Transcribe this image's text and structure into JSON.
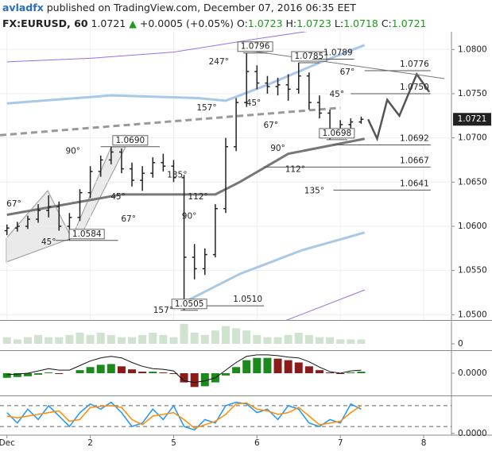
{
  "header": {
    "author": "avladfx",
    "published": "published on TradingView.com, December 07, 2016 06:35 EET",
    "symbol": "FX:EURUSD, 60",
    "last": "1.0721",
    "arrow": "▲",
    "change": "+0.0005 (+0.05%)",
    "o_label": "O:",
    "o": "1.0723",
    "h_label": "H:",
    "h": "1.0723",
    "l_label": "L:",
    "l": "1.0718",
    "c_label": "C:",
    "c": "1.0721"
  },
  "chart_data": [
    {
      "type": "ohlc",
      "color": "#222222",
      "xlim": [
        -2,
        128
      ],
      "xticks": [
        {
          "value": 0,
          "label": "Dec"
        },
        {
          "value": 24,
          "label": "2"
        },
        {
          "value": 48,
          "label": "5"
        },
        {
          "value": 72,
          "label": "6"
        },
        {
          "value": 96,
          "label": "7"
        },
        {
          "value": 120,
          "label": "8"
        }
      ],
      "ylim": [
        1.0494,
        1.082
      ],
      "yticks": [
        {
          "value": 1.05,
          "label": "1.0500"
        },
        {
          "value": 1.055,
          "label": "1.0550"
        },
        {
          "value": 1.06,
          "label": "1.0600"
        },
        {
          "value": 1.065,
          "label": "1.0650"
        },
        {
          "value": 1.07,
          "label": "1.0700"
        },
        {
          "value": 1.075,
          "label": "1.0750"
        },
        {
          "value": 1.08,
          "label": "1.0800"
        }
      ],
      "grid": true,
      "x": [
        0,
        3,
        6,
        9,
        12,
        15,
        18,
        21,
        24,
        27,
        30,
        33,
        36,
        39,
        42,
        45,
        48,
        51,
        54,
        57,
        60,
        63,
        66,
        69,
        72,
        75,
        78,
        81,
        84,
        87,
        90,
        93,
        96,
        99,
        102
      ],
      "open": [
        1.0595,
        1.0598,
        1.06,
        1.0608,
        1.0618,
        1.0622,
        1.06,
        1.061,
        1.0638,
        1.0662,
        1.0675,
        1.0684,
        1.0665,
        1.0652,
        1.066,
        1.0672,
        1.0668,
        1.0655,
        1.0565,
        1.0552,
        1.0568,
        1.062,
        1.069,
        1.074,
        1.0775,
        1.0762,
        1.0758,
        1.076,
        1.0755,
        1.077,
        1.074,
        1.0728,
        1.0708,
        1.0715,
        1.0718
      ],
      "high": [
        1.0602,
        1.0605,
        1.0612,
        1.0625,
        1.0635,
        1.0628,
        1.0615,
        1.0642,
        1.0668,
        1.068,
        1.069,
        1.0688,
        1.0672,
        1.0668,
        1.0678,
        1.0682,
        1.0675,
        1.0658,
        1.058,
        1.0575,
        1.0625,
        1.07,
        1.0745,
        1.0796,
        1.0782,
        1.077,
        1.0768,
        1.0772,
        1.0785,
        1.0774,
        1.0748,
        1.0732,
        1.072,
        1.0722,
        1.0724
      ],
      "low": [
        1.059,
        1.0594,
        1.0597,
        1.0604,
        1.061,
        1.0595,
        1.0584,
        1.0606,
        1.0632,
        1.0656,
        1.067,
        1.066,
        1.0645,
        1.064,
        1.0655,
        1.0662,
        1.065,
        1.0505,
        1.054,
        1.0545,
        1.0565,
        1.0615,
        1.0685,
        1.0735,
        1.0755,
        1.075,
        1.0748,
        1.0742,
        1.075,
        1.0732,
        1.0722,
        1.0698,
        1.0702,
        1.071,
        1.0716
      ],
      "close": [
        1.0598,
        1.06,
        1.0608,
        1.0618,
        1.0622,
        1.06,
        1.061,
        1.0638,
        1.0662,
        1.0675,
        1.0684,
        1.0665,
        1.0652,
        1.066,
        1.0672,
        1.0668,
        1.0655,
        1.0565,
        1.0552,
        1.0568,
        1.062,
        1.069,
        1.074,
        1.0775,
        1.0762,
        1.0758,
        1.076,
        1.0755,
        1.077,
        1.074,
        1.0728,
        1.0708,
        1.0715,
        1.0718,
        1.0721
      ],
      "overlays": [
        {
          "color": "#9a6fe0",
          "width": 1,
          "x": [
            0,
            24,
            48,
            72,
            96,
            104
          ],
          "values": [
            1.0786,
            1.079,
            1.0797,
            1.0812,
            1.0826,
            1.083
          ]
        },
        {
          "color": "#a8c8e8",
          "width": 3,
          "x": [
            0,
            30,
            55,
            63,
            75,
            90,
            103
          ],
          "values": [
            1.0739,
            1.0748,
            1.0745,
            1.0742,
            1.076,
            1.0785,
            1.0805
          ]
        },
        {
          "color": "#777777",
          "width": 3,
          "x": [
            0,
            33,
            60,
            67,
            81,
            103
          ],
          "values": [
            1.0613,
            1.0636,
            1.0636,
            1.065,
            1.0682,
            1.0699
          ]
        },
        {
          "color": "#999999",
          "width": 3,
          "dash": true,
          "x": [
            -2,
            96
          ],
          "values": [
            1.0703,
            1.0734
          ]
        },
        {
          "color": "#a8c8e8",
          "width": 3,
          "x": [
            51,
            67,
            85,
            103
          ],
          "values": [
            1.0514,
            1.0546,
            1.0573,
            1.0593
          ]
        },
        {
          "color": "#9a6fe0",
          "width": 1,
          "x": [
            76,
            103
          ],
          "values": [
            1.0487,
            1.0528
          ]
        },
        {
          "color": "#555555",
          "width": 2.5,
          "x": [
            104,
            106.6,
            109.5,
            113,
            118,
            121.6
          ],
          "values": [
            1.0721,
            1.0699,
            1.0743,
            1.0725,
            1.0772,
            1.0752
          ]
        },
        {
          "color": "#777777",
          "width": 1,
          "x": [
            69,
            126
          ],
          "values": [
            1.0799,
            1.0767
          ]
        }
      ],
      "levels": [
        {
          "label": "1.0796",
          "y": 1.0796,
          "x1": 68,
          "x2": 75,
          "boxed": true
        },
        {
          "label": "1.0785",
          "y": 1.0785,
          "x1": 84,
          "x2": 90,
          "boxed": true
        },
        {
          "label": "1.0789",
          "y": 1.0789,
          "x1": 88,
          "x2": 100,
          "boxed": false
        },
        {
          "label": "1.0776",
          "y": 1.0776,
          "x1": 103,
          "x2": 122,
          "boxed": false
        },
        {
          "label": "1.0750",
          "y": 1.075,
          "x1": 99,
          "x2": 122,
          "boxed": false
        },
        {
          "label": "1.0692",
          "y": 1.0692,
          "x1": 94,
          "x2": 122,
          "boxed": false
        },
        {
          "label": "1.0698",
          "y": 1.0698,
          "x1": 92,
          "x2": 98,
          "boxed": true
        },
        {
          "label": "1.0667",
          "y": 1.0667,
          "x1": 74,
          "x2": 122,
          "boxed": false
        },
        {
          "label": "1.0641",
          "y": 1.0641,
          "x1": 94,
          "x2": 122,
          "boxed": false
        },
        {
          "label": "1.0690",
          "y": 1.069,
          "x1": 27,
          "x2": 44,
          "boxed": true
        },
        {
          "label": "1.0584",
          "y": 1.0584,
          "x1": 14,
          "x2": 32,
          "boxed": true
        },
        {
          "label": "1.0510",
          "y": 1.051,
          "x1": 51,
          "x2": 74,
          "boxed": false
        },
        {
          "label": "1.0505",
          "y": 1.0505,
          "x1": 50,
          "x2": 55,
          "boxed": true
        }
      ],
      "angles": [
        {
          "text": "247°",
          "x": 61,
          "y": 1.0786
        },
        {
          "text": "157°",
          "x": 57.5,
          "y": 1.0734
        },
        {
          "text": "45°",
          "x": 71,
          "y": 1.0739
        },
        {
          "text": "67°",
          "x": 76,
          "y": 1.0714
        },
        {
          "text": "90°",
          "x": 78,
          "y": 1.0688
        },
        {
          "text": "112°",
          "x": 83,
          "y": 1.0664
        },
        {
          "text": "135°",
          "x": 88.5,
          "y": 1.064
        },
        {
          "text": "67°",
          "x": 98,
          "y": 1.0774
        },
        {
          "text": "45°",
          "x": 95,
          "y": 1.0749
        },
        {
          "text": "90°",
          "x": 19,
          "y": 1.0685
        },
        {
          "text": "67°",
          "x": 2,
          "y": 1.0625
        },
        {
          "text": "45°",
          "x": 12,
          "y": 1.0582
        },
        {
          "text": "45°",
          "x": 32,
          "y": 1.0633
        },
        {
          "text": "67°",
          "x": 35,
          "y": 1.0608
        },
        {
          "text": "135°",
          "x": 49,
          "y": 1.0658
        },
        {
          "text": "112°",
          "x": 55,
          "y": 1.0633
        },
        {
          "text": "90°",
          "x": 52.5,
          "y": 1.0611
        },
        {
          "text": "157°",
          "x": 45,
          "y": 1.0505
        }
      ],
      "price_tag": {
        "value": 1.0721,
        "label": "1.0721"
      }
    },
    {
      "type": "bar",
      "color": "#cfe3cf",
      "ylim": [
        -2.5,
        10
      ],
      "yticks": [
        0
      ],
      "x": [
        0,
        3,
        6,
        9,
        12,
        15,
        18,
        21,
        24,
        27,
        30,
        33,
        36,
        39,
        42,
        45,
        48,
        51,
        54,
        57,
        60,
        63,
        66,
        69,
        72,
        75,
        78,
        81,
        84,
        87,
        90,
        93,
        96,
        99,
        102
      ],
      "values": [
        3,
        2,
        3,
        4,
        3,
        3,
        4,
        5,
        4,
        5,
        4,
        3,
        3,
        4,
        5,
        4,
        3,
        9,
        5,
        4,
        6,
        8,
        7,
        6,
        4,
        3,
        3,
        4,
        5,
        4,
        3,
        3,
        2,
        2,
        2
      ]
    },
    {
      "type": "macd",
      "up_color": "#1b8a1b",
      "down_color": "#8b1a1a",
      "line_color": "#111111",
      "ylim": [
        -0.0028,
        0.0028
      ],
      "yticks": [
        {
          "value": 0,
          "label": "0.0000"
        }
      ],
      "x": [
        0,
        3,
        6,
        9,
        12,
        15,
        18,
        21,
        24,
        27,
        30,
        33,
        36,
        39,
        42,
        45,
        48,
        51,
        54,
        57,
        60,
        63,
        66,
        69,
        72,
        75,
        78,
        81,
        84,
        87,
        90,
        93,
        96,
        99,
        102
      ],
      "histogram": [
        -0.0006,
        -0.0005,
        -0.0004,
        -0.0002,
        0.0001,
        -0.0001,
        0,
        0.0004,
        0.0008,
        0.0011,
        0.0012,
        0.0009,
        0.0005,
        0.0002,
        0.0002,
        0.0001,
        -0.0001,
        -0.0012,
        -0.0018,
        -0.0017,
        -0.0012,
        -0.0003,
        0.0008,
        0.0017,
        0.002,
        0.002,
        0.0019,
        0.0017,
        0.0014,
        0.0009,
        0.0004,
        0.0001,
        -0.0001,
        0.0001,
        0.0002
      ],
      "line": [
        -0.0002,
        -0.0001,
        0,
        0.0003,
        0.0006,
        0.0004,
        0.0004,
        0.001,
        0.0016,
        0.002,
        0.0022,
        0.002,
        0.0014,
        0.0009,
        0.0006,
        0.0005,
        0.0003,
        -0.001,
        -0.0012,
        -0.001,
        -0.0006,
        0.0004,
        0.0014,
        0.0022,
        0.0024,
        0.0024,
        0.0023,
        0.0021,
        0.002,
        0.0015,
        0.0008,
        0.0002,
        0,
        0.0003,
        0.0004
      ]
    },
    {
      "type": "stochastic",
      "ylim": [
        -5,
        105
      ],
      "yticks": [
        {
          "value": 0,
          "label": "0.0000"
        }
      ],
      "levels": [
        80,
        20
      ],
      "x": [
        0,
        3,
        6,
        9,
        12,
        15,
        18,
        21,
        24,
        27,
        30,
        33,
        36,
        39,
        42,
        45,
        48,
        51,
        54,
        57,
        60,
        63,
        66,
        69,
        72,
        75,
        78,
        81,
        84,
        87,
        90,
        93,
        96,
        99,
        102
      ],
      "series": [
        {
          "color": "#2196f3",
          "values": [
            60,
            30,
            70,
            40,
            80,
            50,
            20,
            60,
            85,
            70,
            90,
            60,
            20,
            30,
            70,
            40,
            80,
            20,
            10,
            40,
            30,
            80,
            90,
            85,
            60,
            70,
            40,
            80,
            70,
            30,
            20,
            40,
            30,
            85,
            70
          ]
        },
        {
          "color": "#ff8c00",
          "values": [
            50,
            45,
            50,
            55,
            60,
            65,
            35,
            40,
            75,
            78,
            80,
            75,
            40,
            25,
            50,
            55,
            60,
            40,
            15,
            25,
            35,
            55,
            85,
            88,
            70,
            65,
            55,
            60,
            75,
            50,
            25,
            30,
            35,
            60,
            80
          ]
        }
      ]
    }
  ]
}
